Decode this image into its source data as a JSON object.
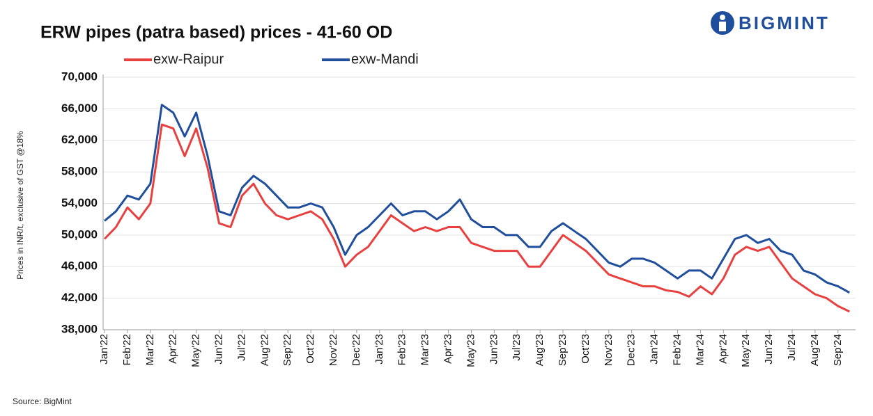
{
  "logo": "BIGMINT",
  "chart_data": {
    "type": "line",
    "title": "ERW pipes (patra based) prices - 41-60 OD",
    "y_label": "Prices in INR/t, exclusive of GST @18%",
    "source": "Source: BigMint",
    "categories": [
      "Jan'22",
      null,
      "Feb'22",
      null,
      "Mar'22",
      null,
      "Apr'22",
      null,
      "May'22",
      null,
      "Jun'22",
      null,
      "Jul'22",
      null,
      "Aug'22",
      null,
      "Sep'22",
      null,
      "Oct'22",
      null,
      "Nov'22",
      null,
      "Dec'22",
      null,
      "Jan'23",
      null,
      "Feb'23",
      null,
      "Mar'23",
      null,
      "Apr'23",
      null,
      "May'23",
      null,
      "Jun'23",
      null,
      "Jul'23",
      null,
      "Aug'23",
      null,
      "Sep'23",
      null,
      "Oct'23",
      null,
      "Nov'23",
      null,
      "Dec'23",
      null,
      "Jan'24",
      null,
      "Feb'24",
      null,
      "Mar'24",
      null,
      "Apr'24",
      null,
      "May'24",
      null,
      "Jun'24",
      null,
      "Jul'24",
      null,
      "Aug'24",
      null,
      "Sep'24",
      null
    ],
    "series": [
      {
        "name": "exw-Raipur",
        "color": "#e8403f",
        "values": [
          49500,
          51000,
          53500,
          52000,
          54000,
          64000,
          63500,
          60000,
          63500,
          58500,
          51500,
          51000,
          55000,
          56500,
          54000,
          52500,
          52000,
          52500,
          53000,
          52000,
          49500,
          46000,
          47500,
          48500,
          50500,
          52500,
          51500,
          50500,
          51000,
          50500,
          51000,
          51000,
          49000,
          48500,
          48000,
          48000,
          48000,
          46000,
          46000,
          48000,
          50000,
          49000,
          48000,
          46500,
          45000,
          44500,
          44000,
          43500,
          43500,
          43000,
          42800,
          42200,
          43500,
          42500,
          44500,
          47500,
          48500,
          48000,
          48500,
          46500,
          44500,
          43500,
          42500,
          42000,
          41000,
          40300
        ]
      },
      {
        "name": "exw-Mandi",
        "color": "#1f4e9c",
        "values": [
          51800,
          53000,
          55000,
          54500,
          56500,
          66500,
          65500,
          62500,
          65500,
          60000,
          53000,
          52500,
          56000,
          57500,
          56500,
          55000,
          53500,
          53500,
          54000,
          53500,
          51000,
          47500,
          50000,
          51000,
          52500,
          54000,
          52500,
          53000,
          53000,
          52000,
          53000,
          54500,
          52000,
          51000,
          51000,
          50000,
          50000,
          48500,
          48500,
          50500,
          51500,
          50500,
          49500,
          48000,
          46500,
          46000,
          47000,
          47000,
          46500,
          45500,
          44500,
          45500,
          45500,
          44500,
          47000,
          49500,
          50000,
          49000,
          49500,
          48000,
          47500,
          45500,
          45000,
          44000,
          43500,
          42700
        ]
      }
    ],
    "ylim": [
      38000,
      70000
    ],
    "yticks": [
      {
        "value": 38000,
        "label": "38,000"
      },
      {
        "value": 42000,
        "label": "42,000"
      },
      {
        "value": 46000,
        "label": "46,000"
      },
      {
        "value": 50000,
        "label": "50,000"
      },
      {
        "value": 54000,
        "label": "54,000"
      },
      {
        "value": 58000,
        "label": "58,000"
      },
      {
        "value": 62000,
        "label": "62,000"
      },
      {
        "value": 66000,
        "label": "66,000"
      },
      {
        "value": 70000,
        "label": "70,000"
      }
    ],
    "grid": true
  }
}
